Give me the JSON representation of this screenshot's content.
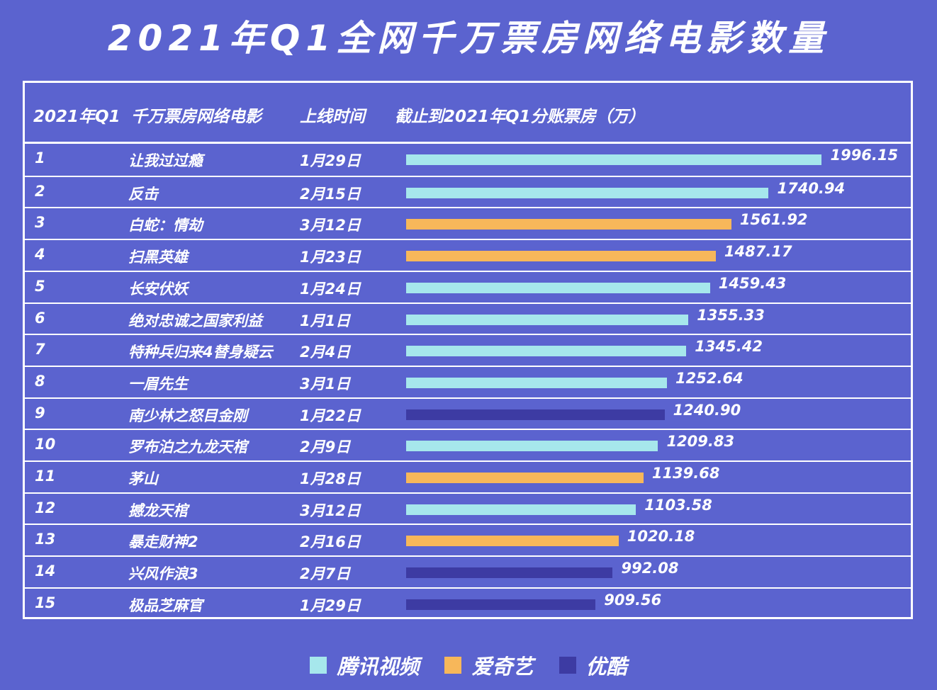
{
  "chart_data": {
    "type": "table",
    "title": "2021年Q1全网千万票房网络电影数量",
    "columns": [
      "2021年Q1",
      "千万票房网络电影",
      "上线时间",
      "截止到2021年Q1分账票房（万）"
    ],
    "series": [
      {
        "name": "腾讯视频",
        "color": "#a6e7ec"
      },
      {
        "name": "爱奇艺",
        "color": "#f7b75a"
      },
      {
        "name": "优酷",
        "color": "#3d3ba3"
      }
    ],
    "rows": [
      {
        "rank": "1",
        "name": "让我过过瘾",
        "date": "1月29日",
        "value": 1996.15,
        "label": "1996.15",
        "platform": "腾讯视频"
      },
      {
        "rank": "2",
        "name": "反击",
        "date": "2月15日",
        "value": 1740.94,
        "label": "1740.94",
        "platform": "腾讯视频"
      },
      {
        "rank": "3",
        "name": "白蛇：情劫",
        "date": "3月12日",
        "value": 1561.92,
        "label": "1561.92",
        "platform": "爱奇艺"
      },
      {
        "rank": "4",
        "name": "扫黑英雄",
        "date": "1月23日",
        "value": 1487.17,
        "label": "1487.17",
        "platform": "爱奇艺"
      },
      {
        "rank": "5",
        "name": "长安伏妖",
        "date": "1月24日",
        "value": 1459.43,
        "label": "1459.43",
        "platform": "腾讯视频"
      },
      {
        "rank": "6",
        "name": "绝对忠诚之国家利益",
        "date": "1月1日",
        "value": 1355.33,
        "label": "1355.33",
        "platform": "腾讯视频"
      },
      {
        "rank": "7",
        "name": "特种兵归来4替身疑云",
        "date": "2月4日",
        "value": 1345.42,
        "label": "1345.42",
        "platform": "腾讯视频"
      },
      {
        "rank": "8",
        "name": "一眉先生",
        "date": "3月1日",
        "value": 1252.64,
        "label": "1252.64",
        "platform": "腾讯视频"
      },
      {
        "rank": "9",
        "name": "南少林之怒目金刚",
        "date": "1月22日",
        "value": 1240.9,
        "label": "1240.90",
        "platform": "优酷"
      },
      {
        "rank": "10",
        "name": "罗布泊之九龙天棺",
        "date": "2月9日",
        "value": 1209.83,
        "label": "1209.83",
        "platform": "腾讯视频"
      },
      {
        "rank": "11",
        "name": "茅山",
        "date": "1月28日",
        "value": 1139.68,
        "label": "1139.68",
        "platform": "爱奇艺"
      },
      {
        "rank": "12",
        "name": "撼龙天棺",
        "date": "3月12日",
        "value": 1103.58,
        "label": "1103.58",
        "platform": "腾讯视频"
      },
      {
        "rank": "13",
        "name": "暴走财神2",
        "date": "2月16日",
        "value": 1020.18,
        "label": "1020.18",
        "platform": "爱奇艺"
      },
      {
        "rank": "14",
        "name": "兴风作浪3",
        "date": "2月7日",
        "value": 992.08,
        "label": "992.08",
        "platform": "优酷"
      },
      {
        "rank": "15",
        "name": "极品芝麻官",
        "date": "1月29日",
        "value": 909.56,
        "label": "909.56",
        "platform": "优酷"
      }
    ]
  }
}
